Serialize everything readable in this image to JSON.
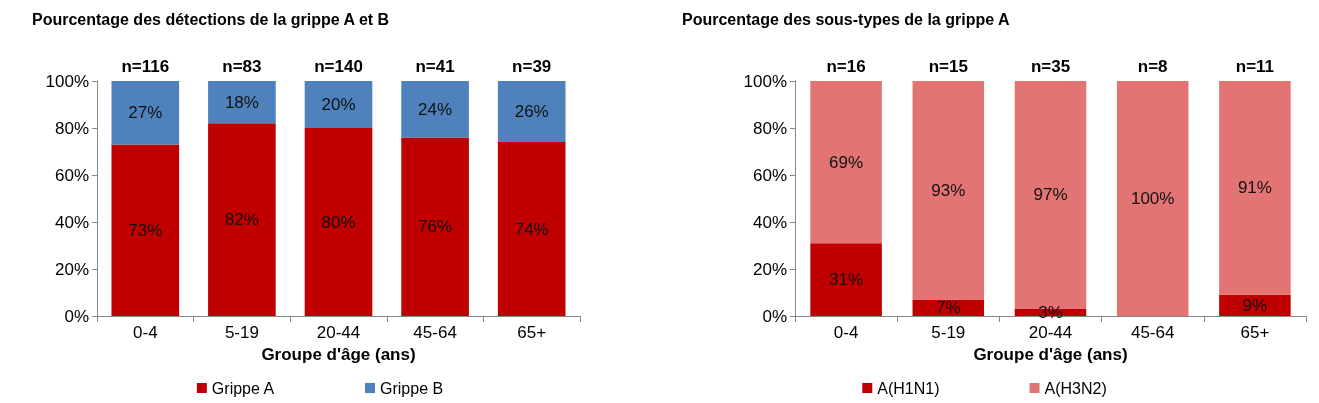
{
  "chart_data": [
    {
      "type": "bar",
      "title": "Pourcentage des détections de la grippe A et B",
      "xlabel": "Groupe d'âge (ans)",
      "categories": [
        "0-4",
        "5-19",
        "20-44",
        "45-64",
        "65+"
      ],
      "stacked": true,
      "legend": "bottom",
      "ylim": [
        0,
        100
      ],
      "yticks": [
        {
          "value": 0,
          "label": "0%"
        },
        {
          "value": 20,
          "label": "20%"
        },
        {
          "value": 40,
          "label": "40%"
        },
        {
          "value": 60,
          "label": "60%"
        },
        {
          "value": 80,
          "label": "80%"
        },
        {
          "value": 100,
          "label": "100%"
        }
      ],
      "annotations": [
        {
          "text": "n=116",
          "x": "0-4",
          "y": 100
        },
        {
          "text": "n=83",
          "x": "5-19",
          "y": 100
        },
        {
          "text": "n=140",
          "x": "20-44",
          "y": 100
        },
        {
          "text": "n=41",
          "x": "45-64",
          "y": 100
        },
        {
          "text": "n=39",
          "x": "65+",
          "y": 100
        }
      ],
      "series": [
        {
          "name": "Grippe A",
          "color": "#c00000",
          "values": [
            73,
            82,
            80,
            76,
            74
          ],
          "value_labels": [
            "73%",
            "82%",
            "80%",
            "76%",
            "74%"
          ]
        },
        {
          "name": "Grippe B",
          "color": "#4f81bd",
          "values": [
            27,
            18,
            20,
            24,
            26
          ],
          "value_labels": [
            "27%",
            "18%",
            "20%",
            "24%",
            "26%"
          ]
        }
      ]
    },
    {
      "type": "bar",
      "title": "Pourcentage des sous-types de la grippe A",
      "xlabel": "Groupe d'âge (ans)",
      "categories": [
        "0-4",
        "5-19",
        "20-44",
        "45-64",
        "65+"
      ],
      "stacked": true,
      "legend": "bottom",
      "ylim": [
        0,
        100
      ],
      "yticks": [
        {
          "value": 0,
          "label": "0%"
        },
        {
          "value": 20,
          "label": "20%"
        },
        {
          "value": 40,
          "label": "40%"
        },
        {
          "value": 60,
          "label": "60%"
        },
        {
          "value": 80,
          "label": "80%"
        },
        {
          "value": 100,
          "label": "100%"
        }
      ],
      "annotations": [
        {
          "text": "n=16",
          "x": "0-4",
          "y": 100
        },
        {
          "text": "n=15",
          "x": "5-19",
          "y": 100
        },
        {
          "text": "n=35",
          "x": "20-44",
          "y": 100
        },
        {
          "text": "n=8",
          "x": "45-64",
          "y": 100
        },
        {
          "text": "n=11",
          "x": "65+",
          "y": 100
        }
      ],
      "series": [
        {
          "name": "A(H1N1)",
          "color": "#c00000",
          "values": [
            31,
            7,
            3,
            0,
            9
          ],
          "value_labels": [
            "31%",
            "7%",
            "3%",
            null,
            "9%"
          ]
        },
        {
          "name": "A(H3N2)",
          "color": "#e37474",
          "values": [
            69,
            93,
            97,
            100,
            91
          ],
          "value_labels": [
            "69%",
            "93%",
            "97%",
            "100%",
            "91%"
          ]
        }
      ]
    }
  ]
}
